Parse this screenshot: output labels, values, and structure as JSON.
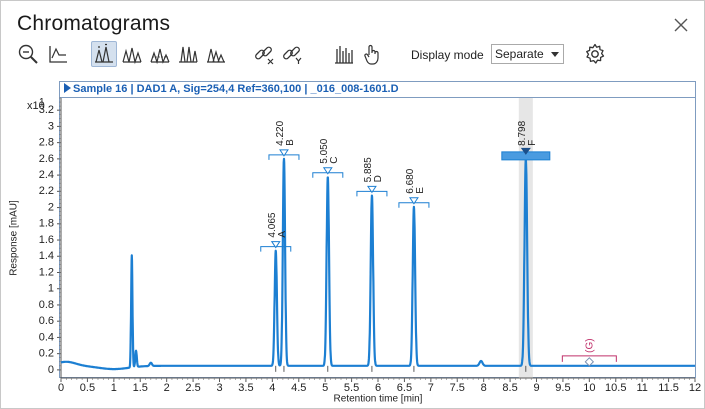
{
  "window": {
    "title": "Chromatograms"
  },
  "toolbar": {
    "buttons": [
      {
        "name": "zoom-out-icon"
      },
      {
        "name": "baseline-icon"
      },
      {
        "name": "peak-labels-icon",
        "active": true
      },
      {
        "name": "peak-overlay-icon"
      },
      {
        "name": "peak-stack-icon"
      },
      {
        "name": "peak-split-icon"
      },
      {
        "name": "peak-shift-icon"
      },
      {
        "name": "link-x-icon"
      },
      {
        "name": "link-y-icon"
      },
      {
        "name": "spectrum-icon"
      },
      {
        "name": "hand-pointer-icon"
      }
    ],
    "display_mode_label": "Display mode",
    "display_mode_value": "Separate"
  },
  "plot": {
    "header": "Sample 16 | DAD1 A, Sig=254,4 Ref=360,100 | _016_008-1601.D"
  },
  "chart_data": {
    "type": "line",
    "xlabel": "Retention time [min]",
    "ylabel": "Response [mAU]",
    "y_multiplier": "x10",
    "y_multiplier_exp": "1",
    "xlim": [
      0,
      12
    ],
    "ylim": [
      -0.1,
      3.35
    ],
    "x_ticks": [
      "0",
      "0.5",
      "1",
      "1.5",
      "2",
      "2.5",
      "3",
      "3.5",
      "4",
      "4.5",
      "5",
      "5.5",
      "6",
      "6.5",
      "7",
      "7.5",
      "8",
      "8.5",
      "9",
      "9.5",
      "10",
      "10.5",
      "11",
      "11.5",
      "12"
    ],
    "y_ticks": [
      "0",
      "0.2",
      "0.4",
      "0.6",
      "0.8",
      "1",
      "1.2",
      "1.4",
      "1.6",
      "1.8",
      "2",
      "2.2",
      "2.4",
      "2.6",
      "2.8",
      "3",
      "3.2"
    ],
    "baseline": 0.05,
    "peaks": [
      {
        "rt": "4.065",
        "name": "A",
        "x": 4.065,
        "height": 1.42,
        "width": 0.03
      },
      {
        "rt": "4.220",
        "name": "B",
        "x": 4.22,
        "height": 2.55,
        "width": 0.03
      },
      {
        "rt": "5.050",
        "name": "C",
        "x": 5.05,
        "height": 2.33,
        "width": 0.032
      },
      {
        "rt": "5.885",
        "name": "D",
        "x": 5.885,
        "height": 2.1,
        "width": 0.032
      },
      {
        "rt": "6.680",
        "name": "E",
        "x": 6.68,
        "height": 1.96,
        "width": 0.032
      },
      {
        "rt": "8.798",
        "name": "F",
        "x": 8.798,
        "height": 2.55,
        "width": 0.035,
        "selected": true
      }
    ],
    "minor_peaks": [
      {
        "x": 1.34,
        "height": 1.38,
        "width": 0.018
      },
      {
        "x": 1.42,
        "height": 0.2,
        "width": 0.02
      },
      {
        "x": 1.7,
        "height": 0.04,
        "width": 0.03
      },
      {
        "x": 7.95,
        "height": 0.06,
        "width": 0.04
      }
    ],
    "expected_peak": {
      "rt": "10",
      "name": "(G)",
      "x": 10.0
    }
  }
}
